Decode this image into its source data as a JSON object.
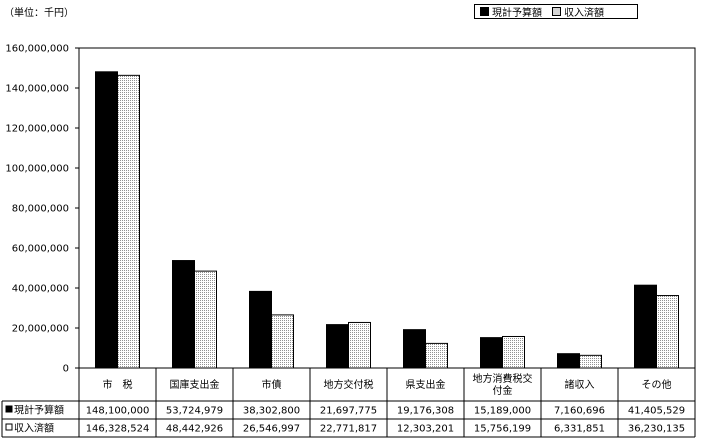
{
  "unit_label": "（単位：千円）",
  "legend": [
    {
      "label": "現計予算額",
      "swatch": "black"
    },
    {
      "label": "収入済額",
      "swatch": "dots"
    }
  ],
  "colors": {
    "budget": "#000000",
    "received_dot": "#555555",
    "axis": "#000000",
    "grid": "#000000"
  },
  "chart_data": {
    "type": "bar",
    "categories": [
      "市　税",
      "国庫支出金",
      "市債",
      "地方交付税",
      "県支出金",
      "地方消費税交付金",
      "諸収入",
      "その他"
    ],
    "category_label_lines": [
      [
        "市　税"
      ],
      [
        "国庫支出金"
      ],
      [
        "市債"
      ],
      [
        "地方交付税"
      ],
      [
        "県支出金"
      ],
      [
        "地方消費税交",
        "付金"
      ],
      [
        "諸収入"
      ],
      [
        "その他"
      ]
    ],
    "series": [
      {
        "name": "現計予算額",
        "values": [
          148100000,
          53724979,
          38302800,
          21697775,
          19176308,
          15189000,
          7160696,
          41405529
        ]
      },
      {
        "name": "収入済額",
        "values": [
          146328524,
          48442926,
          26546997,
          22771817,
          12303201,
          15756199,
          6331851,
          36230135
        ]
      }
    ],
    "ylim": [
      0,
      160000000
    ],
    "yticks": [
      0,
      20000000,
      40000000,
      60000000,
      80000000,
      100000000,
      120000000,
      140000000,
      160000000
    ],
    "ytick_labels": [
      "0",
      "20,000,000",
      "40,000,000",
      "60,000,000",
      "80,000,000",
      "100,000,000",
      "120,000,000",
      "140,000,000",
      "160,000,000"
    ],
    "table": {
      "row_labels": [
        "現計予算額",
        "収入済額"
      ],
      "rows": [
        [
          "148,100,000",
          "53,724,979",
          "38,302,800",
          "21,697,775",
          "19,176,308",
          "15,189,000",
          "7,160,696",
          "41,405,529"
        ],
        [
          "146,328,524",
          "48,442,926",
          "26,546,997",
          "22,771,817",
          "12,303,201",
          "15,756,199",
          "6,331,851",
          "36,230,135"
        ]
      ]
    },
    "grid": false,
    "legend_position": "top-right"
  }
}
